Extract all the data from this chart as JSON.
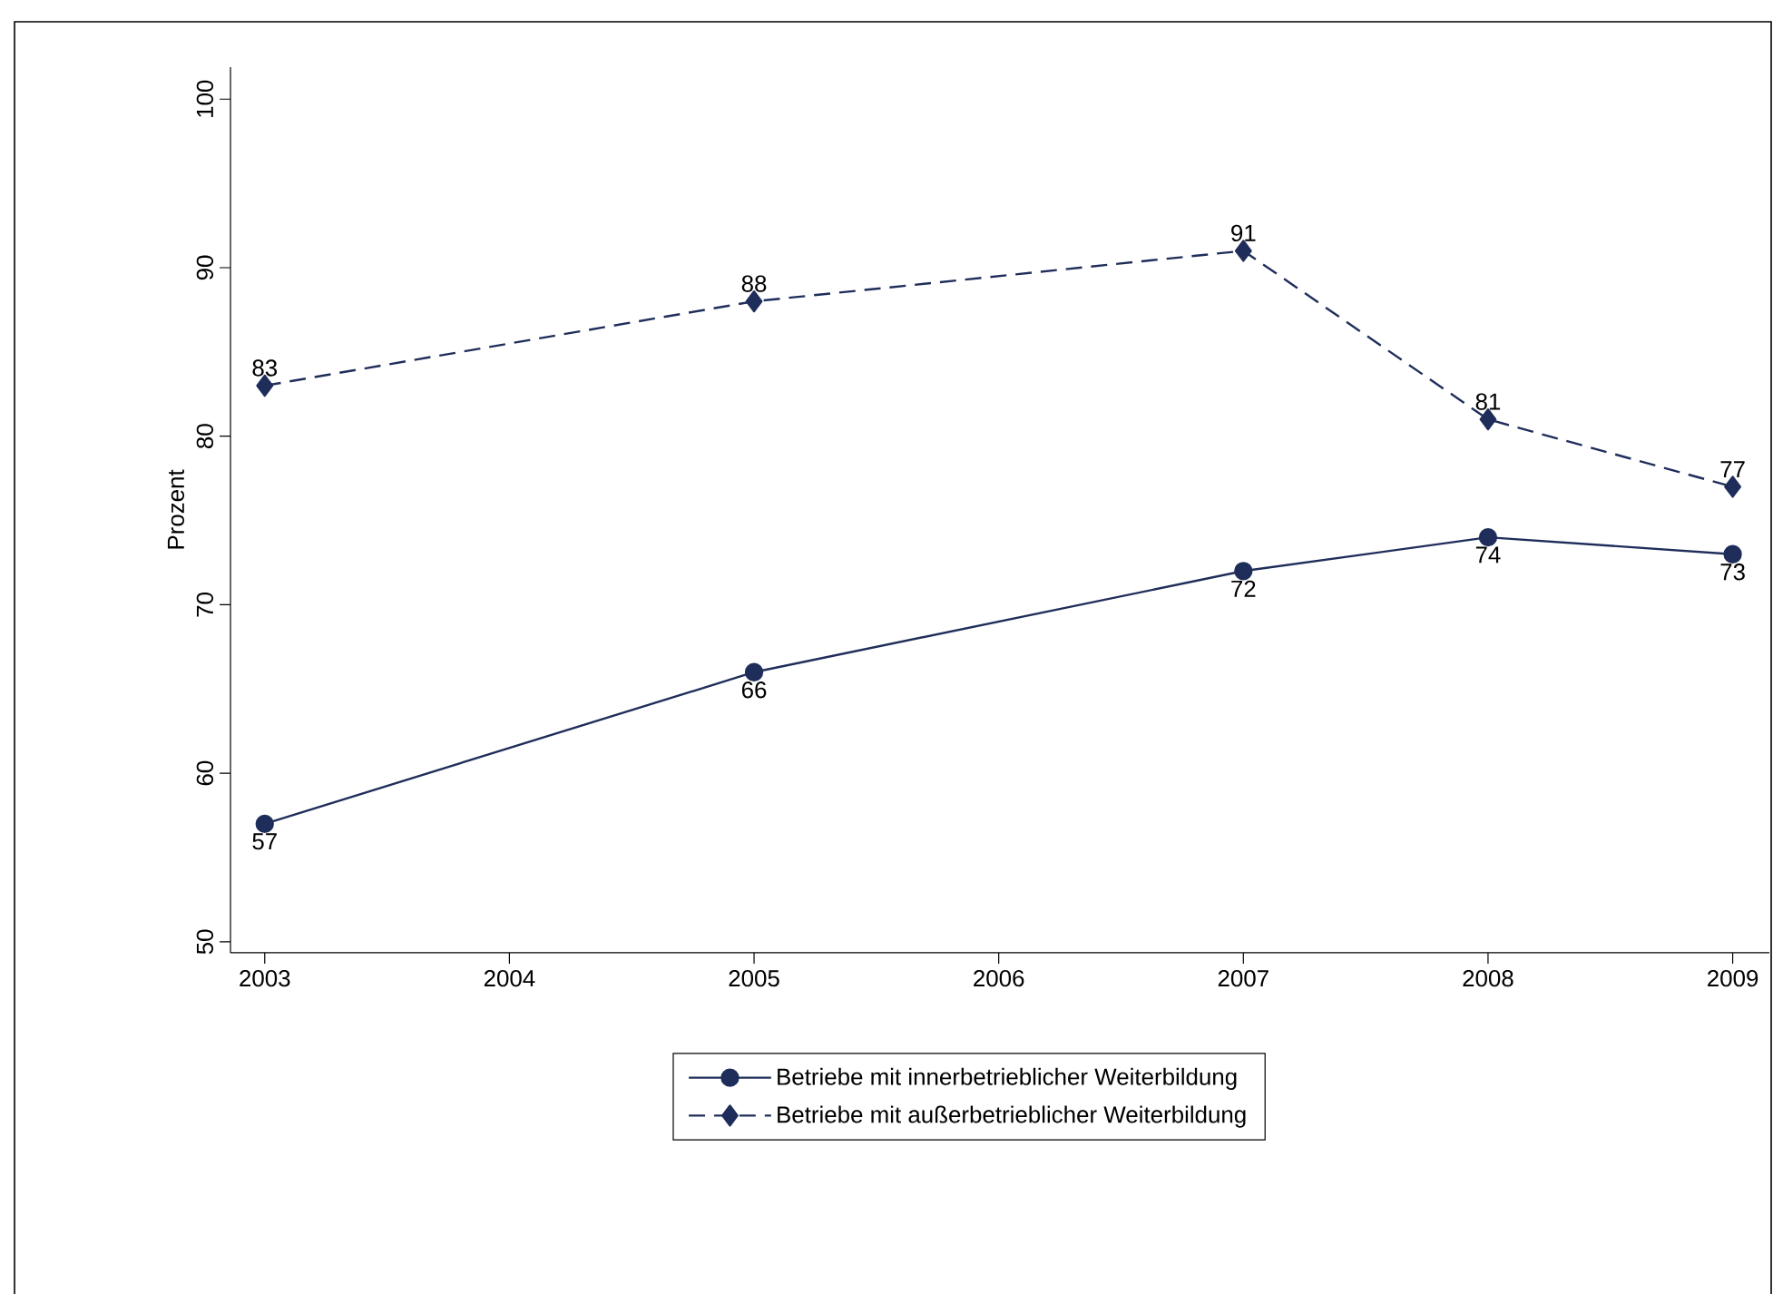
{
  "chart_data": {
    "type": "line",
    "ylabel": "Prozent",
    "x": [
      2003,
      2005,
      2007,
      2008,
      2009
    ],
    "xlim": [
      2002.86,
      2009.15
    ],
    "xticks": [
      2003,
      2004,
      2005,
      2006,
      2007,
      2008,
      2009
    ],
    "ylim": [
      49.35,
      101.9
    ],
    "yticks": [
      50,
      60,
      70,
      80,
      90,
      100
    ],
    "series": [
      {
        "name": "Betriebe mit innerbetrieblicher Weiterbildung",
        "color": "#1f2d5a",
        "values": [
          57,
          66,
          72,
          74,
          73
        ],
        "marker": "circle",
        "line_style": "solid"
      },
      {
        "name": "Betriebe mit außerbetrieblicher Weiterbildung",
        "color": "#1f2d5a",
        "values": [
          83,
          88,
          91,
          81,
          77
        ],
        "marker": "diamond",
        "line_style": "dashed"
      }
    ],
    "data_labels": true,
    "legend": "bottom",
    "grid": false
  }
}
